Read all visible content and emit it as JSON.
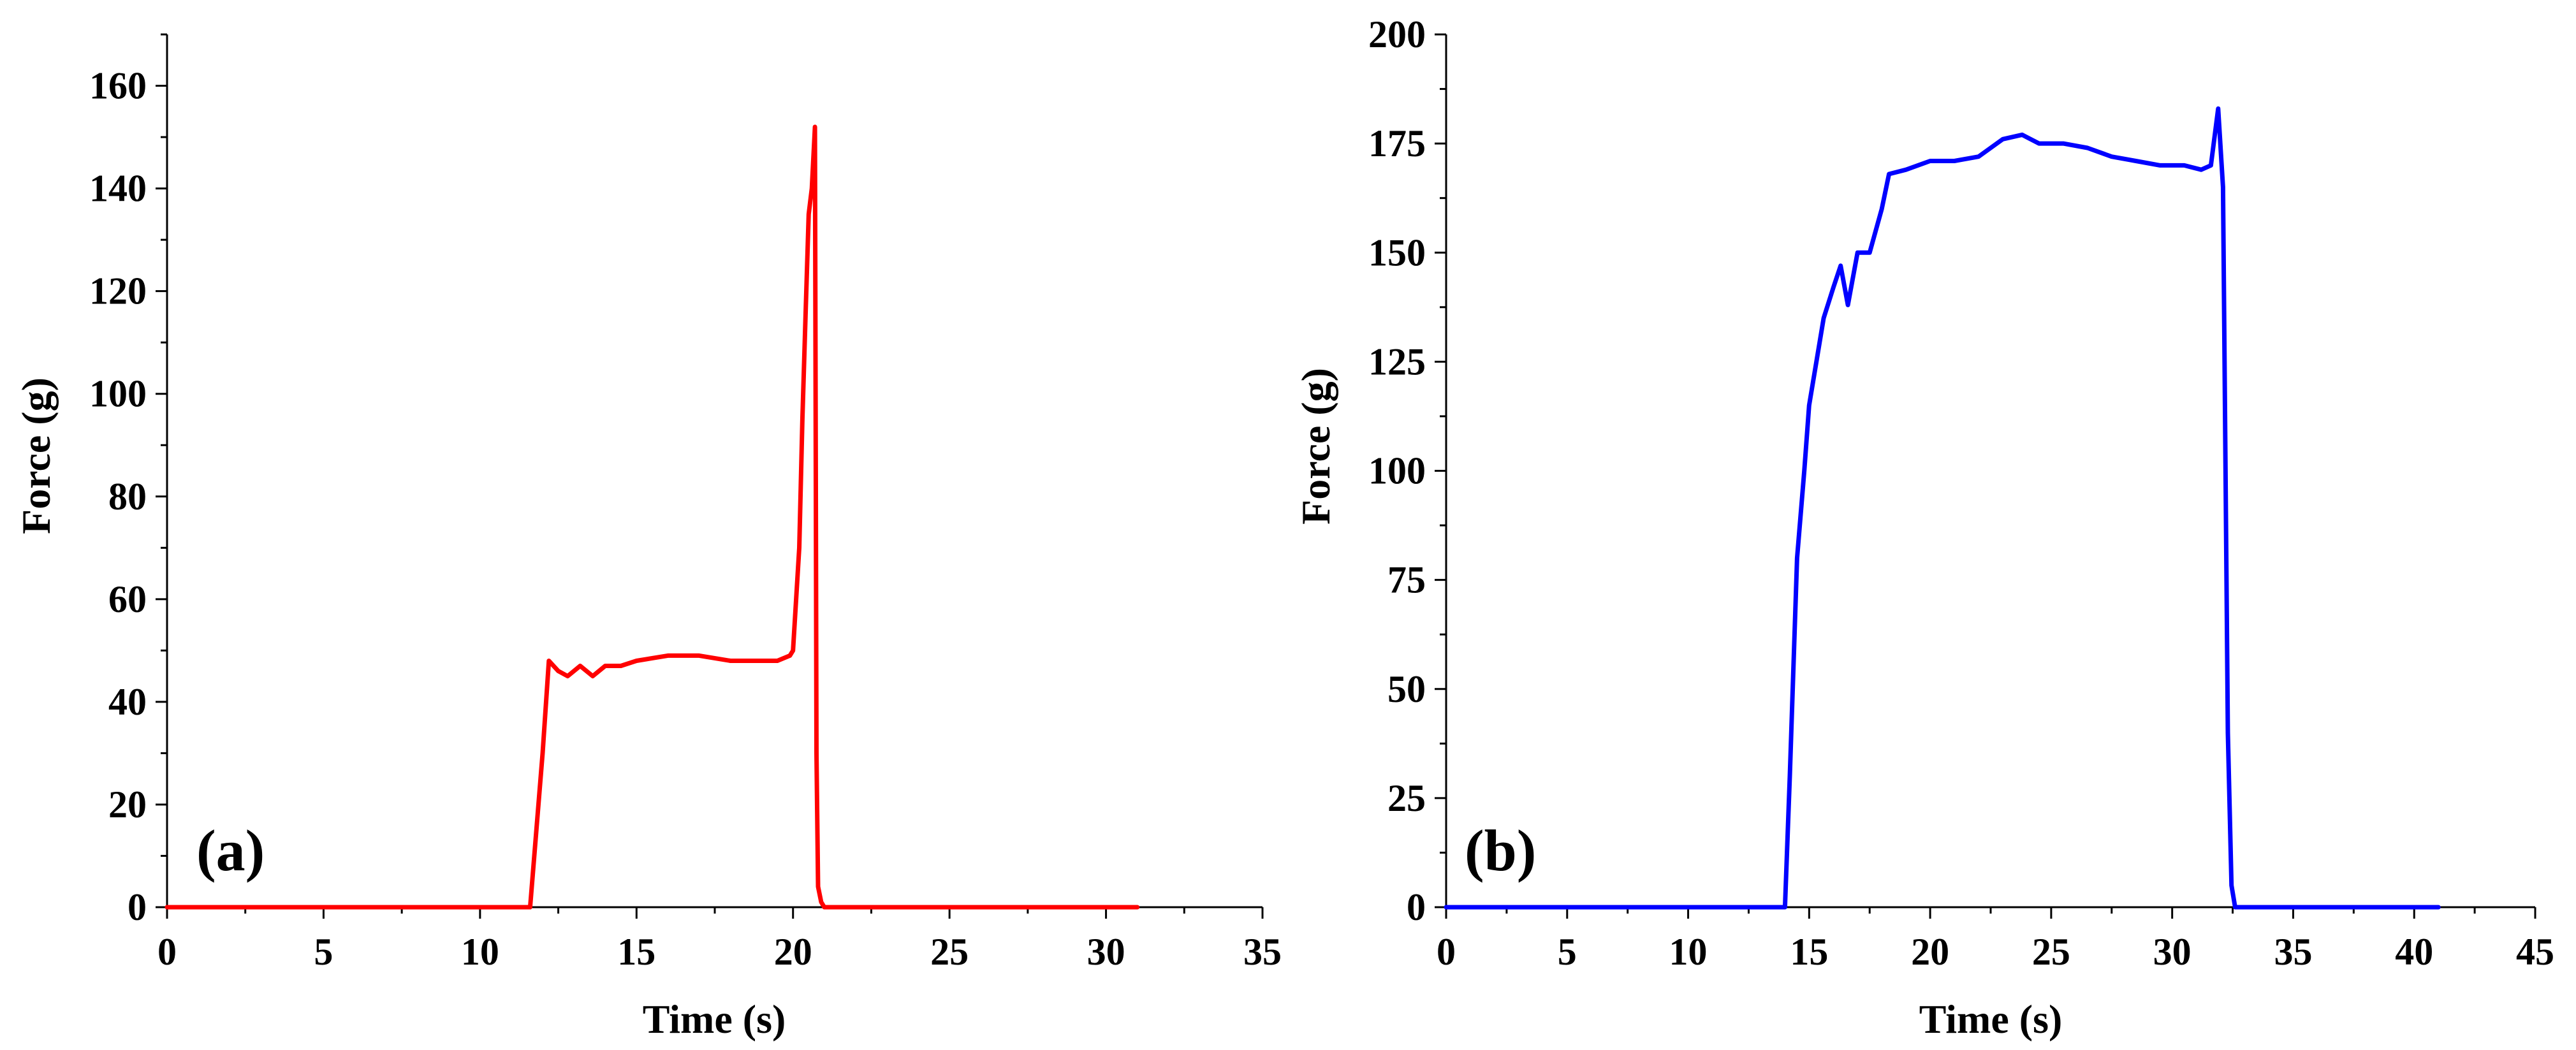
{
  "chart_data": [
    {
      "type": "line",
      "panel_label": "(a)",
      "xlabel": "Time (s)",
      "ylabel": "Force (g)",
      "xlim": [
        0,
        35
      ],
      "ylim": [
        0,
        170
      ],
      "xticks": [
        0,
        5,
        10,
        15,
        20,
        25,
        30,
        35
      ],
      "yticks": [
        0,
        20,
        40,
        60,
        80,
        100,
        120,
        140,
        160
      ],
      "grid": false,
      "color": "#ff0000",
      "series": [
        {
          "x": [
            0,
            11.6,
            11.8,
            12.0,
            12.2,
            12.5,
            12.8,
            13.2,
            13.6,
            14.0,
            14.5,
            15.0,
            16.0,
            17.0,
            18.0,
            19.0,
            19.5,
            19.9,
            20.0,
            20.2,
            20.3,
            20.4,
            20.5,
            20.6,
            20.7,
            20.75,
            20.8,
            20.9,
            21.0,
            21.5,
            25.0,
            31.0
          ],
          "y": [
            0,
            0,
            15,
            30,
            48,
            46,
            45,
            47,
            45,
            47,
            47,
            48,
            49,
            49,
            48,
            48,
            48,
            49,
            50,
            70,
            95,
            115,
            135,
            140,
            152,
            30,
            4,
            1,
            0,
            0,
            0,
            0
          ]
        }
      ]
    },
    {
      "type": "line",
      "panel_label": "(b)",
      "xlabel": "Time (s)",
      "ylabel": "Force (g)",
      "xlim": [
        0,
        45
      ],
      "ylim": [
        0,
        200
      ],
      "xticks": [
        0,
        5,
        10,
        15,
        20,
        25,
        30,
        35,
        40,
        45
      ],
      "yticks": [
        0,
        25,
        50,
        75,
        100,
        125,
        150,
        175,
        200
      ],
      "grid": false,
      "color": "#0000ff",
      "series": [
        {
          "x": [
            0,
            14.0,
            14.2,
            14.5,
            14.8,
            15.0,
            15.3,
            15.6,
            16.0,
            16.3,
            16.6,
            17.0,
            17.5,
            18.0,
            18.3,
            19.0,
            20.0,
            21.0,
            22.0,
            23.0,
            23.8,
            24.5,
            25.5,
            26.5,
            27.5,
            28.5,
            29.5,
            30.5,
            31.2,
            31.6,
            31.9,
            32.1,
            32.3,
            32.45,
            32.6,
            33.0,
            37.0,
            41.0
          ],
          "y": [
            0,
            0,
            30,
            80,
            100,
            115,
            125,
            135,
            142,
            147,
            138,
            150,
            150,
            160,
            168,
            169,
            171,
            171,
            172,
            176,
            177,
            175,
            175,
            174,
            172,
            171,
            170,
            170,
            169,
            170,
            183,
            165,
            40,
            5,
            0,
            0,
            0,
            0
          ]
        }
      ]
    }
  ]
}
